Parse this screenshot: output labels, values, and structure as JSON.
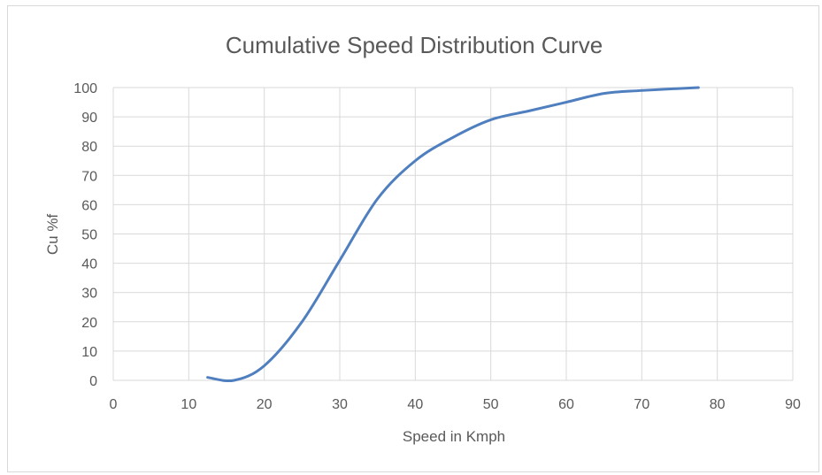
{
  "chart_data": {
    "type": "line",
    "title": "Cumulative Speed Distribution Curve",
    "xlabel": "Speed in Kmph",
    "ylabel": "Cu %f",
    "xlim": [
      0,
      90
    ],
    "ylim": [
      0,
      100
    ],
    "x_ticks": [
      "0",
      "10",
      "20",
      "30",
      "40",
      "50",
      "60",
      "70",
      "80",
      "90"
    ],
    "y_ticks": [
      "0",
      "10",
      "20",
      "30",
      "40",
      "50",
      "60",
      "70",
      "80",
      "90",
      "100"
    ],
    "grid": true,
    "legend": "none",
    "series": [
      {
        "color": "#4f7fbf",
        "smooth": true,
        "x": [
          12.5,
          16,
          20,
          25,
          30,
          35,
          40,
          45,
          50,
          55,
          60,
          65,
          70,
          77.5
        ],
        "y": [
          1,
          0,
          5,
          20,
          41,
          62,
          75,
          83,
          89,
          92,
          95,
          98,
          99,
          100
        ]
      }
    ]
  }
}
